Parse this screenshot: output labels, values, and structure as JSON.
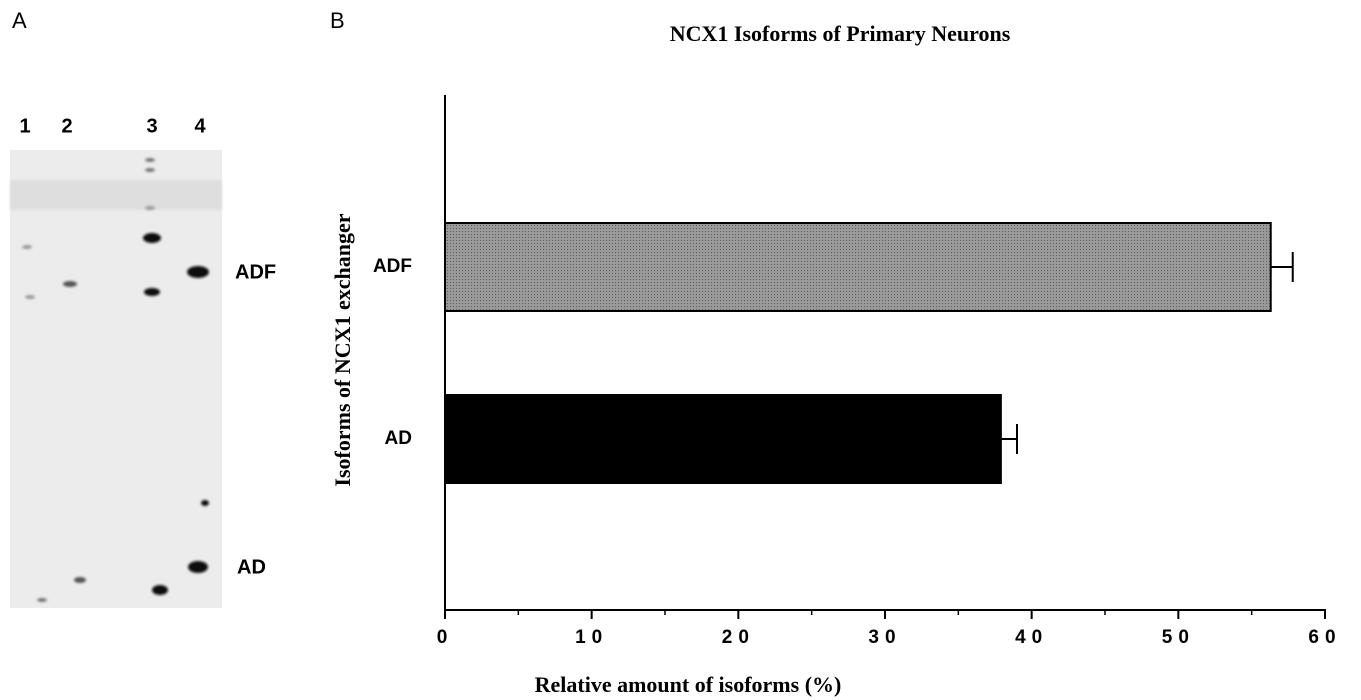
{
  "panel_a": {
    "label": "A",
    "lanes": [
      "1",
      "2",
      "3",
      "4"
    ],
    "bands": [
      "ADF",
      "AD"
    ]
  },
  "chart_data": {
    "type": "hbar",
    "panel_label": "B",
    "title": "NCX1 Isoforms of Primary Neurons",
    "x_label": "Relative amount of isoforms (%)",
    "y_label": "Isoforms of NCX1 exchanger",
    "categories": [
      "ADF",
      "AD"
    ],
    "values": [
      56.3,
      37.9
    ],
    "errors": [
      1.5,
      1.1
    ],
    "colors": [
      "#8c8c8c",
      "#000000"
    ],
    "xlim": [
      0,
      60
    ],
    "xticks": [
      0,
      10,
      20,
      30,
      40,
      50,
      60
    ],
    "xminorticks": [
      5,
      15,
      25,
      35,
      45,
      55
    ]
  }
}
